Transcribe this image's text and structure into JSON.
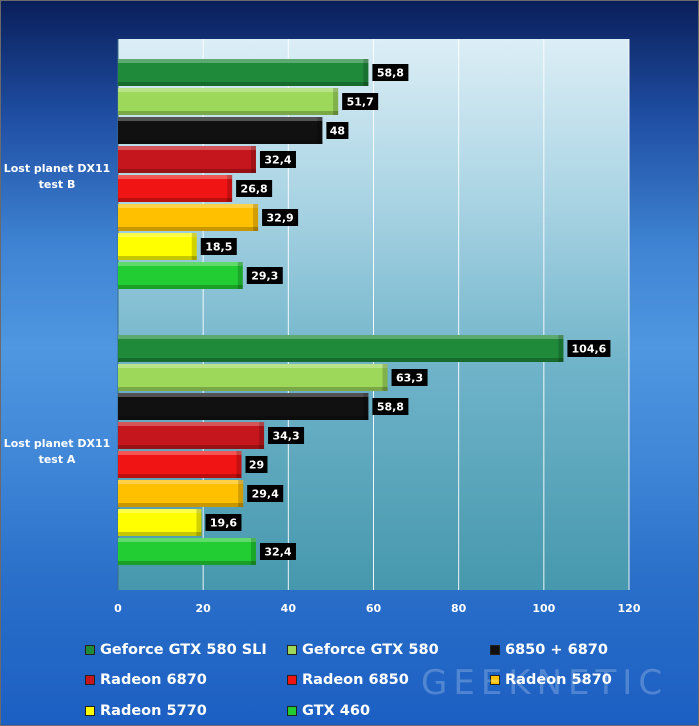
{
  "chart_data": {
    "type": "bar",
    "orientation": "horizontal",
    "categories": [
      "Lost planet DX11\ntest B",
      "Lost planet DX11\ntest A"
    ],
    "series": [
      {
        "name": "Geforce GTX 580 SLI",
        "color": "#1e8a3a",
        "values": [
          58.8,
          104.6
        ],
        "labels": [
          "58,8",
          "104,6"
        ]
      },
      {
        "name": "Geforce GTX 580",
        "color": "#9ed85a",
        "values": [
          51.7,
          63.3
        ],
        "labels": [
          "51,7",
          "63,3"
        ]
      },
      {
        "name": "6850 + 6870",
        "color": "#111111",
        "values": [
          48,
          58.8
        ],
        "labels": [
          "48",
          "58,8"
        ]
      },
      {
        "name": "Radeon 6870",
        "color": "#c4161c",
        "values": [
          32.4,
          34.3
        ],
        "labels": [
          "32,4",
          "34,3"
        ]
      },
      {
        "name": "Radeon 6850",
        "color": "#f01414",
        "values": [
          26.8,
          29
        ],
        "labels": [
          "26,8",
          "29"
        ]
      },
      {
        "name": "Radeon 5870",
        "color": "#ffc000",
        "values": [
          32.9,
          29.4
        ],
        "labels": [
          "32,9",
          "29,4"
        ]
      },
      {
        "name": "Radeon 5770",
        "color": "#ffff00",
        "values": [
          18.5,
          19.6
        ],
        "labels": [
          "18,5",
          "19,6"
        ]
      },
      {
        "name": "GTX 460",
        "color": "#22cc33",
        "values": [
          29.3,
          32.4
        ],
        "labels": [
          "29,3",
          "32,4"
        ]
      }
    ],
    "xlim": [
      0,
      120
    ],
    "xticks": [
      0,
      20,
      40,
      60,
      80,
      100,
      120
    ],
    "xtick_labels": [
      "0",
      "20",
      "40",
      "60",
      "80",
      "100",
      "120"
    ],
    "grid": true,
    "legend_position": "bottom",
    "watermark": "GEEKNETIC"
  }
}
